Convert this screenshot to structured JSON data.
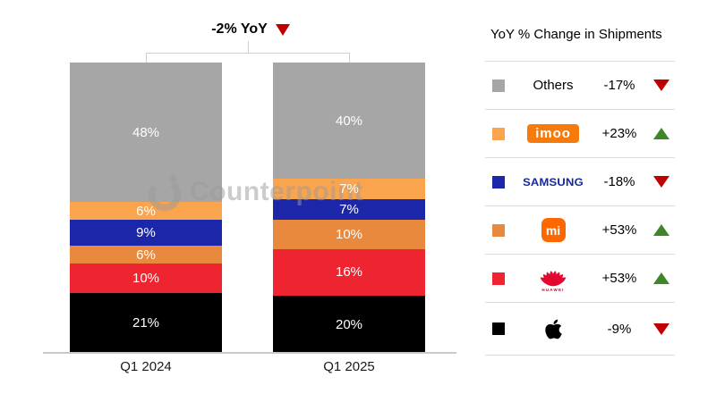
{
  "header": {
    "annotation": "-2% YoY",
    "direction": "down"
  },
  "watermark": {
    "text": "Counterpoint"
  },
  "chart_data": {
    "type": "bar",
    "stacked": true,
    "title": "",
    "categories": [
      "Q1 2024",
      "Q1 2025"
    ],
    "series": [
      {
        "name": "Others",
        "color": "#A6A6A6",
        "values": [
          48,
          40
        ],
        "yoy_change": "-17%"
      },
      {
        "name": "imoo",
        "color": "#FAA44E",
        "values": [
          6,
          7
        ],
        "yoy_change": "+23%"
      },
      {
        "name": "Samsung",
        "color": "#1C26A8",
        "values": [
          9,
          7
        ],
        "yoy_change": "-18%"
      },
      {
        "name": "Mi",
        "color": "#E8893E",
        "values": [
          6,
          10
        ],
        "yoy_change": "+53%"
      },
      {
        "name": "Huawei",
        "color": "#EE2430",
        "values": [
          10,
          16
        ],
        "yoy_change": "+53%"
      },
      {
        "name": "Apple",
        "color": "#000000",
        "values": [
          21,
          20
        ],
        "yoy_change": "-9%"
      }
    ],
    "value_suffix": "%",
    "total_annotation": "-2% YoY",
    "ylim": [
      0,
      100
    ],
    "grid": false,
    "legend_position": "right"
  },
  "legend": {
    "title": "YoY % Change in Shipments",
    "rows": [
      {
        "brand": "Others",
        "change": "-17%",
        "direction": "down"
      },
      {
        "brand": "imoo",
        "change": "+23%",
        "direction": "up"
      },
      {
        "brand": "SAMSUNG",
        "change": "-18%",
        "direction": "down"
      },
      {
        "brand": "Mi",
        "logo_text": "mi",
        "change": "+53%",
        "direction": "up"
      },
      {
        "brand": "Huawei",
        "caption": "HUAWEI",
        "change": "+53%",
        "direction": "up"
      },
      {
        "brand": "Apple",
        "change": "-9%",
        "direction": "down"
      }
    ]
  },
  "colors": {
    "positive_green": "#3E8728",
    "negative_red": "#C00000",
    "imoo_logo": "#F57B0D",
    "mi_logo": "#FF6700",
    "samsung_wordmark": "#1428A0",
    "huawei_logo": "#E4072F",
    "axis_line": "#C9C9C9",
    "separator": "#DADADA",
    "bracket": "#CFCFCF",
    "watermark": "#9B9B9B"
  }
}
